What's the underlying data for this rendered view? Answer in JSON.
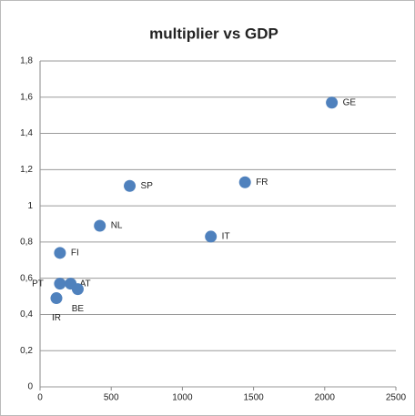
{
  "chart_data": {
    "type": "scatter",
    "title": "multiplier vs GDP",
    "series": [
      {
        "color": "#4f81bd",
        "x": [
          2050,
          1440,
          630,
          420,
          1200,
          140,
          140,
          215,
          265,
          115
        ],
        "values": [
          1.57,
          1.13,
          1.11,
          0.89,
          0.83,
          0.74,
          0.57,
          0.57,
          0.54,
          0.49
        ],
        "point_labels": [
          "GE",
          "FR",
          "SP",
          "NL",
          "IT",
          "FI",
          "PT",
          "AT",
          "BE",
          "IR"
        ]
      }
    ],
    "xlim": [
      0,
      2500
    ],
    "xticks": [
      0,
      500,
      1000,
      1500,
      2000,
      2500
    ],
    "ylim": [
      0,
      1.8
    ],
    "yticks": [
      0,
      {
        "value": 0.2,
        "label": "0,2"
      },
      {
        "value": 0.4,
        "label": "0,4"
      },
      {
        "value": 0.6,
        "label": "0,6"
      },
      {
        "value": 0.8,
        "label": "0,8"
      },
      1,
      {
        "value": 1.2,
        "label": "1,2"
      },
      {
        "value": 1.4,
        "label": "1,4"
      },
      {
        "value": 1.6,
        "label": "1,6"
      },
      {
        "value": 1.8,
        "label": "1,8"
      }
    ],
    "grid": true
  }
}
